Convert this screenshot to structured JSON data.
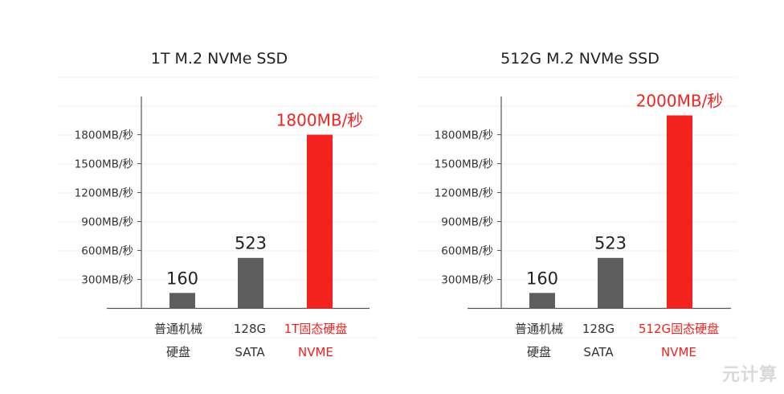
{
  "chart_data": [
    {
      "type": "bar",
      "title": "1T M.2 NVMe SSD",
      "categories": [
        [
          "普通机械",
          "硬盘"
        ],
        [
          "128G",
          "SATA"
        ],
        [
          "1T固态硬盘",
          "NVME"
        ]
      ],
      "values": [
        160,
        523,
        1800
      ],
      "value_labels": [
        "160",
        "523",
        "1800MB/秒"
      ],
      "highlight_index": 2,
      "y_ticks": [
        300,
        600,
        900,
        1200,
        1500,
        1800
      ],
      "y_tick_labels": [
        "300MB/秒",
        "600MB/秒",
        "900MB/秒",
        "1200MB/秒",
        "1500MB/秒",
        "1800MB/秒"
      ],
      "ylim": [
        0,
        2200
      ],
      "grid": true
    },
    {
      "type": "bar",
      "title": "512G M.2 NVMe SSD",
      "categories": [
        [
          "普通机械",
          "硬盘"
        ],
        [
          "128G",
          "SATA"
        ],
        [
          "512G固态硬盘",
          "NVME"
        ]
      ],
      "values": [
        160,
        523,
        2000
      ],
      "value_labels": [
        "160",
        "523",
        "2000MB/秒"
      ],
      "highlight_index": 2,
      "y_ticks": [
        300,
        600,
        900,
        1200,
        1500,
        1800
      ],
      "y_tick_labels": [
        "300MB/秒",
        "600MB/秒",
        "900MB/秒",
        "1200MB/秒",
        "1500MB/秒",
        "1800MB/秒"
      ],
      "ylim": [
        0,
        2200
      ],
      "grid": true
    }
  ],
  "colors": {
    "bar": "#5e5e5e",
    "highlight": "#f3221f",
    "axis": "#555555",
    "grid": "#eeeeee",
    "text": "#333333"
  },
  "watermark": "元计算"
}
